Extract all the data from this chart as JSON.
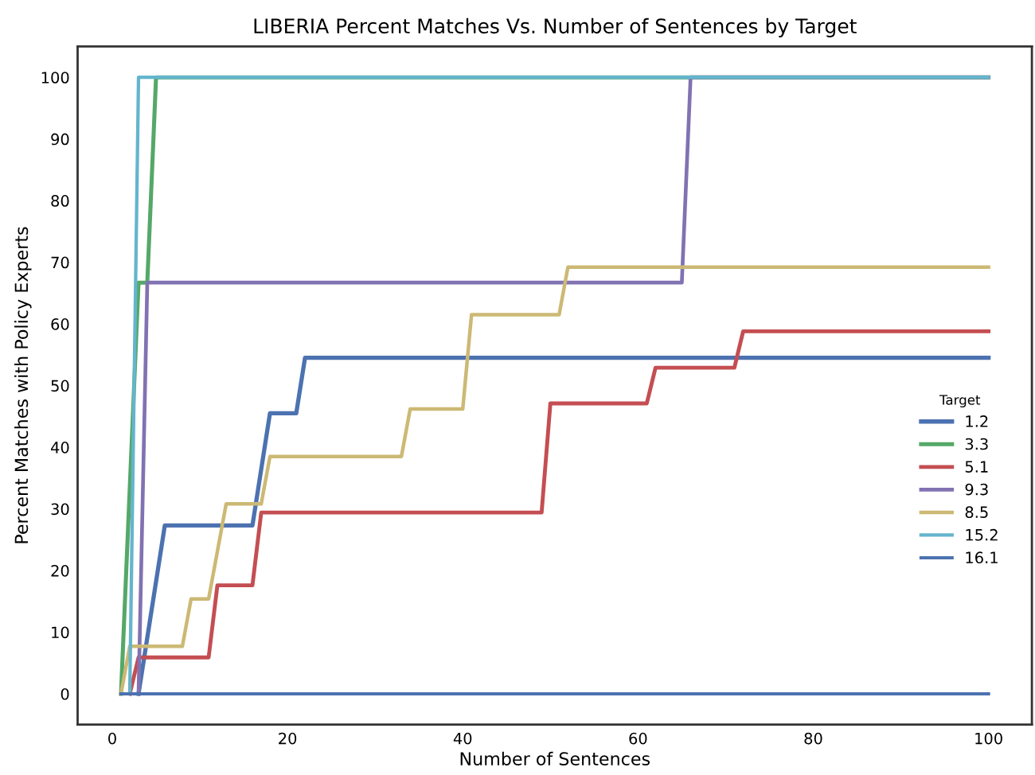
{
  "chart_data": {
    "type": "line",
    "title": "LIBERIA Percent Matches Vs. Number of Sentences by Target",
    "xlabel": "Number of Sentences",
    "ylabel": "Percent Matches with Policy Experts",
    "legend_title": "Target",
    "xlim": [
      -3.95,
      104.95
    ],
    "ylim": [
      -5,
      105
    ],
    "xticks": [
      0,
      20,
      40,
      60,
      80,
      100
    ],
    "yticks": [
      0,
      10,
      20,
      30,
      40,
      50,
      60,
      70,
      80,
      90,
      100
    ],
    "grid": false,
    "legend": "right",
    "marker": "none",
    "line_style": "solid",
    "series": [
      {
        "name": "1.2",
        "color": "#4c72b0",
        "x": [
          3,
          6,
          16,
          18,
          21,
          22,
          100
        ],
        "values": [
          0,
          27.3,
          27.3,
          45.5,
          45.5,
          54.5,
          54.5
        ]
      },
      {
        "name": "3.3",
        "color": "#55a868",
        "x": [
          1,
          3,
          4,
          5,
          100
        ],
        "values": [
          0,
          66.7,
          66.7,
          100,
          100
        ]
      },
      {
        "name": "5.1",
        "color": "#c44e52",
        "x": [
          2,
          3,
          11,
          12,
          16,
          17,
          49,
          50,
          61,
          62,
          71,
          72,
          100
        ],
        "values": [
          0,
          5.9,
          5.9,
          17.6,
          17.6,
          29.4,
          29.4,
          47.1,
          47.1,
          52.9,
          52.9,
          58.8,
          58.8
        ]
      },
      {
        "name": "9.3",
        "color": "#8172b2",
        "x": [
          3,
          4,
          65,
          66,
          100
        ],
        "values": [
          0,
          66.7,
          66.7,
          100,
          100
        ]
      },
      {
        "name": "8.5",
        "color": "#ccb974",
        "x": [
          1,
          2,
          8,
          9,
          11,
          13,
          17,
          18,
          33,
          34,
          40,
          41,
          51,
          52,
          100
        ],
        "values": [
          0,
          7.7,
          7.7,
          15.4,
          15.4,
          30.8,
          30.8,
          38.5,
          38.5,
          46.2,
          46.2,
          61.5,
          61.5,
          69.2,
          69.2
        ]
      },
      {
        "name": "15.2",
        "color": "#64b5cd",
        "x": [
          2,
          3,
          100
        ],
        "values": [
          0,
          100,
          100
        ]
      },
      {
        "name": "16.1",
        "color": "#4c72b0",
        "x": [
          1,
          100
        ],
        "values": [
          0,
          0
        ]
      }
    ]
  }
}
